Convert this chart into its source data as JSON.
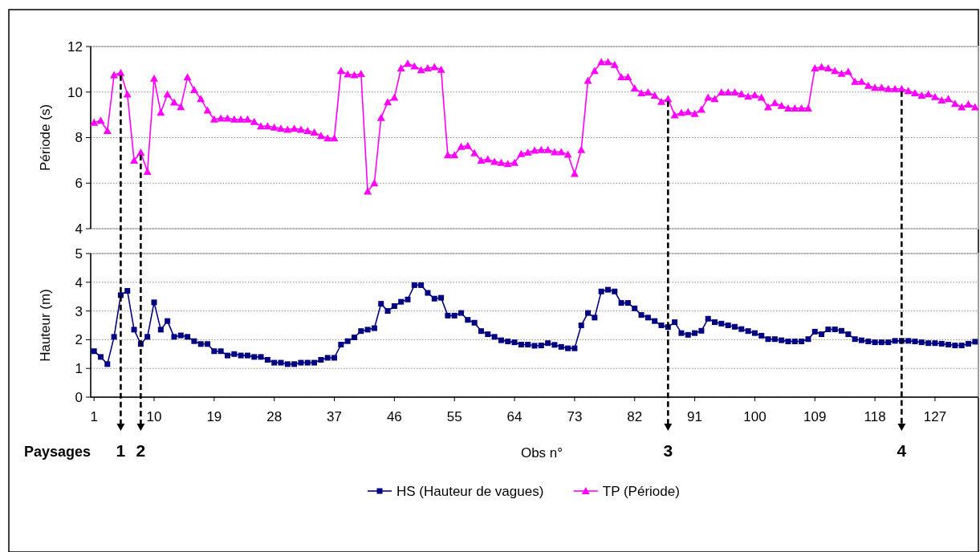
{
  "chart_data": [
    {
      "type": "line",
      "ylabel": "Période (s)",
      "xlim": [
        0.5,
        133.5
      ],
      "ylim": [
        4,
        12
      ],
      "yticks": [
        4,
        6,
        8,
        10,
        12
      ],
      "grid": "y",
      "legend": "bottom",
      "tick_labels": "y",
      "x": [
        1,
        2,
        3,
        4,
        5,
        6,
        7,
        8,
        9,
        10,
        11,
        12,
        13,
        14,
        15,
        16,
        17,
        18,
        19,
        20,
        21,
        22,
        23,
        24,
        25,
        26,
        27,
        28,
        29,
        30,
        31,
        32,
        33,
        34,
        35,
        36,
        37,
        38,
        39,
        40,
        41,
        42,
        43,
        44,
        45,
        46,
        47,
        48,
        49,
        50,
        51,
        52,
        53,
        54,
        55,
        56,
        57,
        58,
        59,
        60,
        61,
        62,
        63,
        64,
        65,
        66,
        67,
        68,
        69,
        70,
        71,
        72,
        73,
        74,
        75,
        76,
        77,
        78,
        79,
        80,
        81,
        82,
        83,
        84,
        85,
        86,
        87,
        88,
        89,
        90,
        91,
        92,
        93,
        94,
        95,
        96,
        97,
        98,
        99,
        100,
        101,
        102,
        103,
        104,
        105,
        106,
        107,
        108,
        109,
        110,
        111,
        112,
        113,
        114,
        115,
        116,
        117,
        118,
        119,
        120,
        121,
        122,
        123,
        124,
        125,
        126,
        127,
        128,
        129,
        130,
        131,
        132,
        133
      ],
      "series": [
        {
          "name": "TP (Période)",
          "color": "#ff00ff",
          "marker": "triangle",
          "values": [
            8.66,
            8.75,
            8.3,
            10.75,
            10.85,
            9.9,
            7.0,
            7.35,
            6.5,
            10.6,
            9.1,
            9.9,
            9.55,
            9.35,
            10.65,
            10.1,
            9.7,
            9.2,
            8.8,
            8.85,
            8.85,
            8.8,
            8.8,
            8.8,
            8.7,
            8.5,
            8.5,
            8.45,
            8.4,
            8.35,
            8.4,
            8.35,
            8.3,
            8.23,
            8.08,
            7.97,
            7.97,
            10.93,
            10.78,
            10.75,
            10.8,
            5.64,
            6.0,
            8.87,
            9.56,
            9.76,
            11.05,
            11.25,
            11.14,
            10.97,
            11.05,
            11.1,
            10.99,
            7.23,
            7.23,
            7.6,
            7.64,
            7.32,
            7.0,
            7.05,
            6.94,
            6.9,
            6.85,
            6.9,
            7.29,
            7.35,
            7.44,
            7.46,
            7.46,
            7.37,
            7.37,
            7.26,
            6.41,
            7.46,
            10.5,
            10.93,
            11.32,
            11.32,
            11.2,
            10.66,
            10.66,
            10.17,
            9.96,
            9.99,
            9.85,
            9.58,
            9.7,
            8.99,
            9.09,
            9.13,
            9.05,
            9.23,
            9.76,
            9.7,
            9.99,
            9.99,
            9.99,
            9.91,
            9.81,
            9.87,
            9.76,
            9.34,
            9.52,
            9.4,
            9.29,
            9.29,
            9.29,
            9.29,
            11.05,
            11.1,
            11.05,
            10.93,
            10.81,
            10.9,
            10.46,
            10.46,
            10.28,
            10.19,
            10.19,
            10.14,
            10.14,
            10.14,
            10.05,
            9.96,
            9.85,
            9.91,
            9.79,
            9.64,
            9.7,
            9.49,
            9.34,
            9.46,
            9.34
          ]
        }
      ]
    },
    {
      "type": "line",
      "ylabel": "Hauteur (m)",
      "xlabel": "Obs n°",
      "xlim": [
        0.5,
        133.5
      ],
      "ylim": [
        0,
        5
      ],
      "yticks": [
        0,
        1,
        2,
        3,
        4,
        5
      ],
      "xticks": [
        1,
        10,
        19,
        28,
        37,
        46,
        55,
        64,
        73,
        82,
        91,
        100,
        109,
        118,
        127
      ],
      "grid": "y",
      "legend": "bottom",
      "x": [
        1,
        2,
        3,
        4,
        5,
        6,
        7,
        8,
        9,
        10,
        11,
        12,
        13,
        14,
        15,
        16,
        17,
        18,
        19,
        20,
        21,
        22,
        23,
        24,
        25,
        26,
        27,
        28,
        29,
        30,
        31,
        32,
        33,
        34,
        35,
        36,
        37,
        38,
        39,
        40,
        41,
        42,
        43,
        44,
        45,
        46,
        47,
        48,
        49,
        50,
        51,
        52,
        53,
        54,
        55,
        56,
        57,
        58,
        59,
        60,
        61,
        62,
        63,
        64,
        65,
        66,
        67,
        68,
        69,
        70,
        71,
        72,
        73,
        74,
        75,
        76,
        77,
        78,
        79,
        80,
        81,
        82,
        83,
        84,
        85,
        86,
        87,
        88,
        89,
        90,
        91,
        92,
        93,
        94,
        95,
        96,
        97,
        98,
        99,
        100,
        101,
        102,
        103,
        104,
        105,
        106,
        107,
        108,
        109,
        110,
        111,
        112,
        113,
        114,
        115,
        116,
        117,
        118,
        119,
        120,
        121,
        122,
        123,
        124,
        125,
        126,
        127,
        128,
        129,
        130,
        131,
        132,
        133
      ],
      "series": [
        {
          "name": "HS (Hauteur de vagues)",
          "color": "#000080",
          "marker": "square",
          "values": [
            1.6,
            1.4,
            1.15,
            2.1,
            3.55,
            3.7,
            2.35,
            1.85,
            2.1,
            3.3,
            2.35,
            2.65,
            2.1,
            2.15,
            2.1,
            1.95,
            1.85,
            1.85,
            1.6,
            1.6,
            1.45,
            1.5,
            1.45,
            1.45,
            1.4,
            1.4,
            1.3,
            1.2,
            1.2,
            1.15,
            1.15,
            1.2,
            1.2,
            1.2,
            1.3,
            1.37,
            1.37,
            1.83,
            1.95,
            2.08,
            2.3,
            2.35,
            2.4,
            3.25,
            3.0,
            3.17,
            3.32,
            3.4,
            3.9,
            3.9,
            3.63,
            3.43,
            3.46,
            2.84,
            2.84,
            2.93,
            2.69,
            2.59,
            2.3,
            2.19,
            2.1,
            1.98,
            1.94,
            1.91,
            1.83,
            1.83,
            1.79,
            1.8,
            1.88,
            1.82,
            1.75,
            1.7,
            1.7,
            2.5,
            2.93,
            2.77,
            3.68,
            3.74,
            3.68,
            3.28,
            3.28,
            3.09,
            2.86,
            2.77,
            2.65,
            2.5,
            2.44,
            2.61,
            2.23,
            2.17,
            2.23,
            2.31,
            2.73,
            2.61,
            2.56,
            2.5,
            2.45,
            2.37,
            2.3,
            2.23,
            2.14,
            2.02,
            2.02,
            1.98,
            1.94,
            1.94,
            1.94,
            2.02,
            2.28,
            2.19,
            2.36,
            2.36,
            2.31,
            2.19,
            2.02,
            1.98,
            1.94,
            1.91,
            1.91,
            1.91,
            1.96,
            1.96,
            1.96,
            1.94,
            1.91,
            1.88,
            1.88,
            1.86,
            1.83,
            1.8,
            1.8,
            1.86,
            1.93
          ]
        }
      ],
      "annotations": [
        "Paysages",
        {
          "text": "1",
          "x": 5
        },
        {
          "text": "2",
          "x": 8
        },
        {
          "text": "3",
          "x": 87
        },
        {
          "text": "4",
          "x": 122
        }
      ]
    }
  ]
}
